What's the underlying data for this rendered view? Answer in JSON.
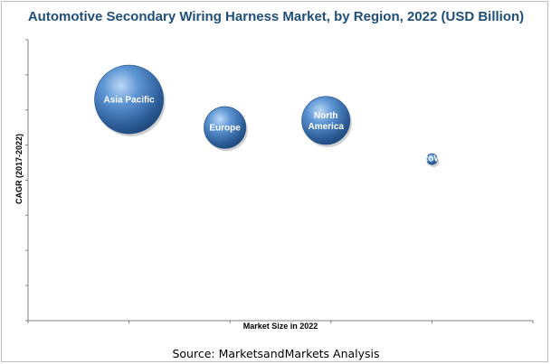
{
  "chart_data": {
    "type": "bubble",
    "title": "Automotive Secondary Wiring Harness Market, by Region, 2022 (USD Billion)",
    "xlabel": "Market Size in 2022",
    "ylabel": "CAGR (2017-2022)",
    "xlim": [
      0,
      10
    ],
    "ylim": [
      0,
      8
    ],
    "axis_tick_labels": false,
    "legend": "none",
    "bubble_color": "#4f86c6",
    "series": [
      {
        "label": "Asia Pacific",
        "x": 2.0,
        "y": 6.3,
        "size": 100
      },
      {
        "label": "Europe",
        "x": 3.9,
        "y": 5.5,
        "size": 37
      },
      {
        "label": "North\nAmerica",
        "x": 5.9,
        "y": 5.7,
        "size": 49
      },
      {
        "label": "RoW",
        "x": 8.0,
        "y": 4.6,
        "size": 2
      }
    ]
  },
  "source": "Source: MarketsandMarkets Analysis"
}
